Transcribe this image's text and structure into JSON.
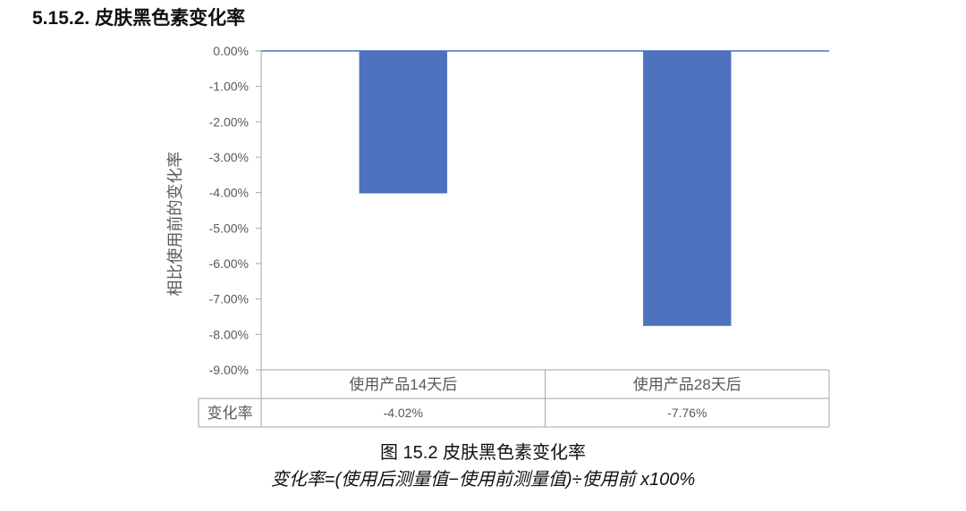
{
  "section": {
    "number": "5.15.2.",
    "title": "皮肤黑色素变化率"
  },
  "caption": "图 15.2 皮肤黑色素变化率",
  "formula": "变化率=(使用后测量值−使用前测量值)÷使用前 x100%",
  "chart_data": {
    "type": "bar",
    "title": "",
    "ylabel": "相比使用前的变化率",
    "xlabel": "",
    "categories": [
      "使用产品14天后",
      "使用产品28天后"
    ],
    "series": [
      {
        "name": "变化率",
        "values": [
          -4.02,
          -7.76
        ],
        "value_labels": [
          "-4.02%",
          "-7.76%"
        ]
      }
    ],
    "ylim": [
      -9,
      0
    ],
    "y_ticks": [
      0,
      -1,
      -2,
      -3,
      -4,
      -5,
      -6,
      -7,
      -8,
      -9
    ],
    "y_tick_labels": [
      "0.00%",
      "-1.00%",
      "-2.00%",
      "-3.00%",
      "-4.00%",
      "-5.00%",
      "-6.00%",
      "-7.00%",
      "-8.00%",
      "-9.00%"
    ],
    "data_table": {
      "row_label": "变化率"
    },
    "grid": false,
    "legend": "none",
    "bar_color": "#4f72be",
    "axis_color": "#4472c4"
  }
}
